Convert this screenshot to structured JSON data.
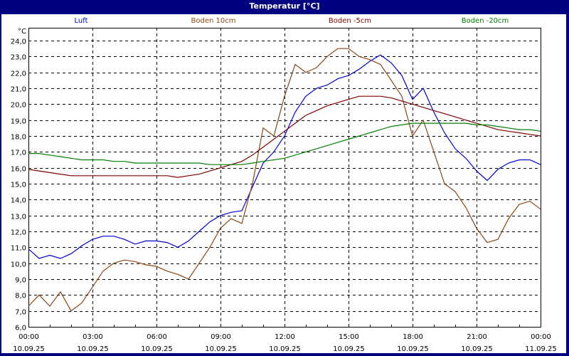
{
  "window": {
    "title": "Temperatur [°C]"
  },
  "colors": {
    "background": "#000080",
    "panel": "#ffffff",
    "grid": "#000000",
    "luft": "#0000dd",
    "boden10": "#8b4513",
    "boden5": "#800000",
    "boden20": "#008000"
  },
  "chart_data": {
    "type": "line",
    "title": "Temperatur [°C]",
    "xlabel": "",
    "ylabel": "°C",
    "ylim": [
      6.0,
      24.0
    ],
    "xlim_hours": [
      0,
      24
    ],
    "grid": true,
    "legend_position": "top",
    "y_ticks": [
      "6,0",
      "7,0",
      "8,0",
      "9,0",
      "10,0",
      "11,0",
      "12,0",
      "13,0",
      "14,0",
      "15,0",
      "16,0",
      "17,0",
      "18,0",
      "19,0",
      "20,0",
      "21,0",
      "22,0",
      "23,0",
      "24,0"
    ],
    "x_ticks": [
      {
        "time": "00:00",
        "date": "10.09.25"
      },
      {
        "time": "03:00",
        "date": "10.09.25"
      },
      {
        "time": "06:00",
        "date": "10.09.25"
      },
      {
        "time": "09:00",
        "date": "10.09.25"
      },
      {
        "time": "12:00",
        "date": "10.09.25"
      },
      {
        "time": "15:00",
        "date": "10.09.25"
      },
      {
        "time": "18:00",
        "date": "10.09.25"
      },
      {
        "time": "21:00",
        "date": "10.09.25"
      },
      {
        "time": "00:00",
        "date": "11.09.25"
      }
    ],
    "x_hours": [
      0,
      0.5,
      1,
      1.5,
      2,
      2.5,
      3,
      3.5,
      4,
      4.5,
      5,
      5.5,
      6,
      6.5,
      7,
      7.5,
      8,
      8.5,
      9,
      9.5,
      10,
      10.5,
      11,
      11.5,
      12,
      12.5,
      13,
      13.5,
      14,
      14.5,
      15,
      15.5,
      16,
      16.5,
      17,
      17.5,
      18,
      18.5,
      19,
      19.5,
      20,
      20.5,
      21,
      21.5,
      22,
      22.5,
      23,
      23.5,
      24
    ],
    "series": [
      {
        "name": "Luft",
        "color": "#0000dd",
        "values": [
          10.9,
          10.3,
          10.5,
          10.3,
          10.6,
          11.1,
          11.5,
          11.7,
          11.7,
          11.5,
          11.2,
          11.4,
          11.4,
          11.3,
          11.0,
          11.4,
          12.0,
          12.6,
          13.0,
          13.2,
          13.3,
          14.8,
          16.3,
          17.0,
          18.0,
          19.5,
          20.5,
          21.0,
          21.2,
          21.6,
          21.8,
          22.2,
          22.7,
          23.1,
          22.6,
          21.8,
          20.3,
          21.0,
          19.5,
          18.2,
          17.2,
          16.6,
          15.8,
          15.2,
          15.9,
          16.3,
          16.5,
          16.5,
          16.2
        ]
      },
      {
        "name": "Boden 10cm",
        "color": "#8b4513",
        "values": [
          7.3,
          8.0,
          7.3,
          8.2,
          7.0,
          7.5,
          8.5,
          9.5,
          10.0,
          10.2,
          10.1,
          9.9,
          9.8,
          9.5,
          9.3,
          9.0,
          10.0,
          11.0,
          12.2,
          12.8,
          12.5,
          15.0,
          18.5,
          18.0,
          20.5,
          22.5,
          22.0,
          22.3,
          23.0,
          23.5,
          23.5,
          23.0,
          22.8,
          22.5,
          21.5,
          20.5,
          18.0,
          19.0,
          17.0,
          15.0,
          14.5,
          13.5,
          12.2,
          11.3,
          11.5,
          12.8,
          13.7,
          13.9,
          13.4
        ]
      },
      {
        "name": "Boden -5cm",
        "color": "#800000",
        "values": [
          15.9,
          15.8,
          15.7,
          15.6,
          15.5,
          15.5,
          15.5,
          15.5,
          15.5,
          15.5,
          15.5,
          15.5,
          15.5,
          15.5,
          15.4,
          15.5,
          15.6,
          15.8,
          16.0,
          16.2,
          16.4,
          16.8,
          17.3,
          17.8,
          18.3,
          18.8,
          19.3,
          19.6,
          19.9,
          20.1,
          20.3,
          20.5,
          20.5,
          20.5,
          20.4,
          20.2,
          20.0,
          19.8,
          19.6,
          19.4,
          19.2,
          19.0,
          18.8,
          18.6,
          18.4,
          18.3,
          18.2,
          18.1,
          18.0
        ]
      },
      {
        "name": "Boden -20cm",
        "color": "#008000",
        "values": [
          16.9,
          16.9,
          16.8,
          16.7,
          16.6,
          16.5,
          16.5,
          16.5,
          16.4,
          16.4,
          16.3,
          16.3,
          16.3,
          16.3,
          16.3,
          16.3,
          16.3,
          16.2,
          16.2,
          16.2,
          16.2,
          16.3,
          16.4,
          16.5,
          16.6,
          16.8,
          17.0,
          17.2,
          17.4,
          17.6,
          17.8,
          18.0,
          18.2,
          18.4,
          18.6,
          18.7,
          18.8,
          18.8,
          18.8,
          18.8,
          18.8,
          18.8,
          18.7,
          18.7,
          18.6,
          18.5,
          18.4,
          18.4,
          18.3
        ]
      }
    ]
  }
}
